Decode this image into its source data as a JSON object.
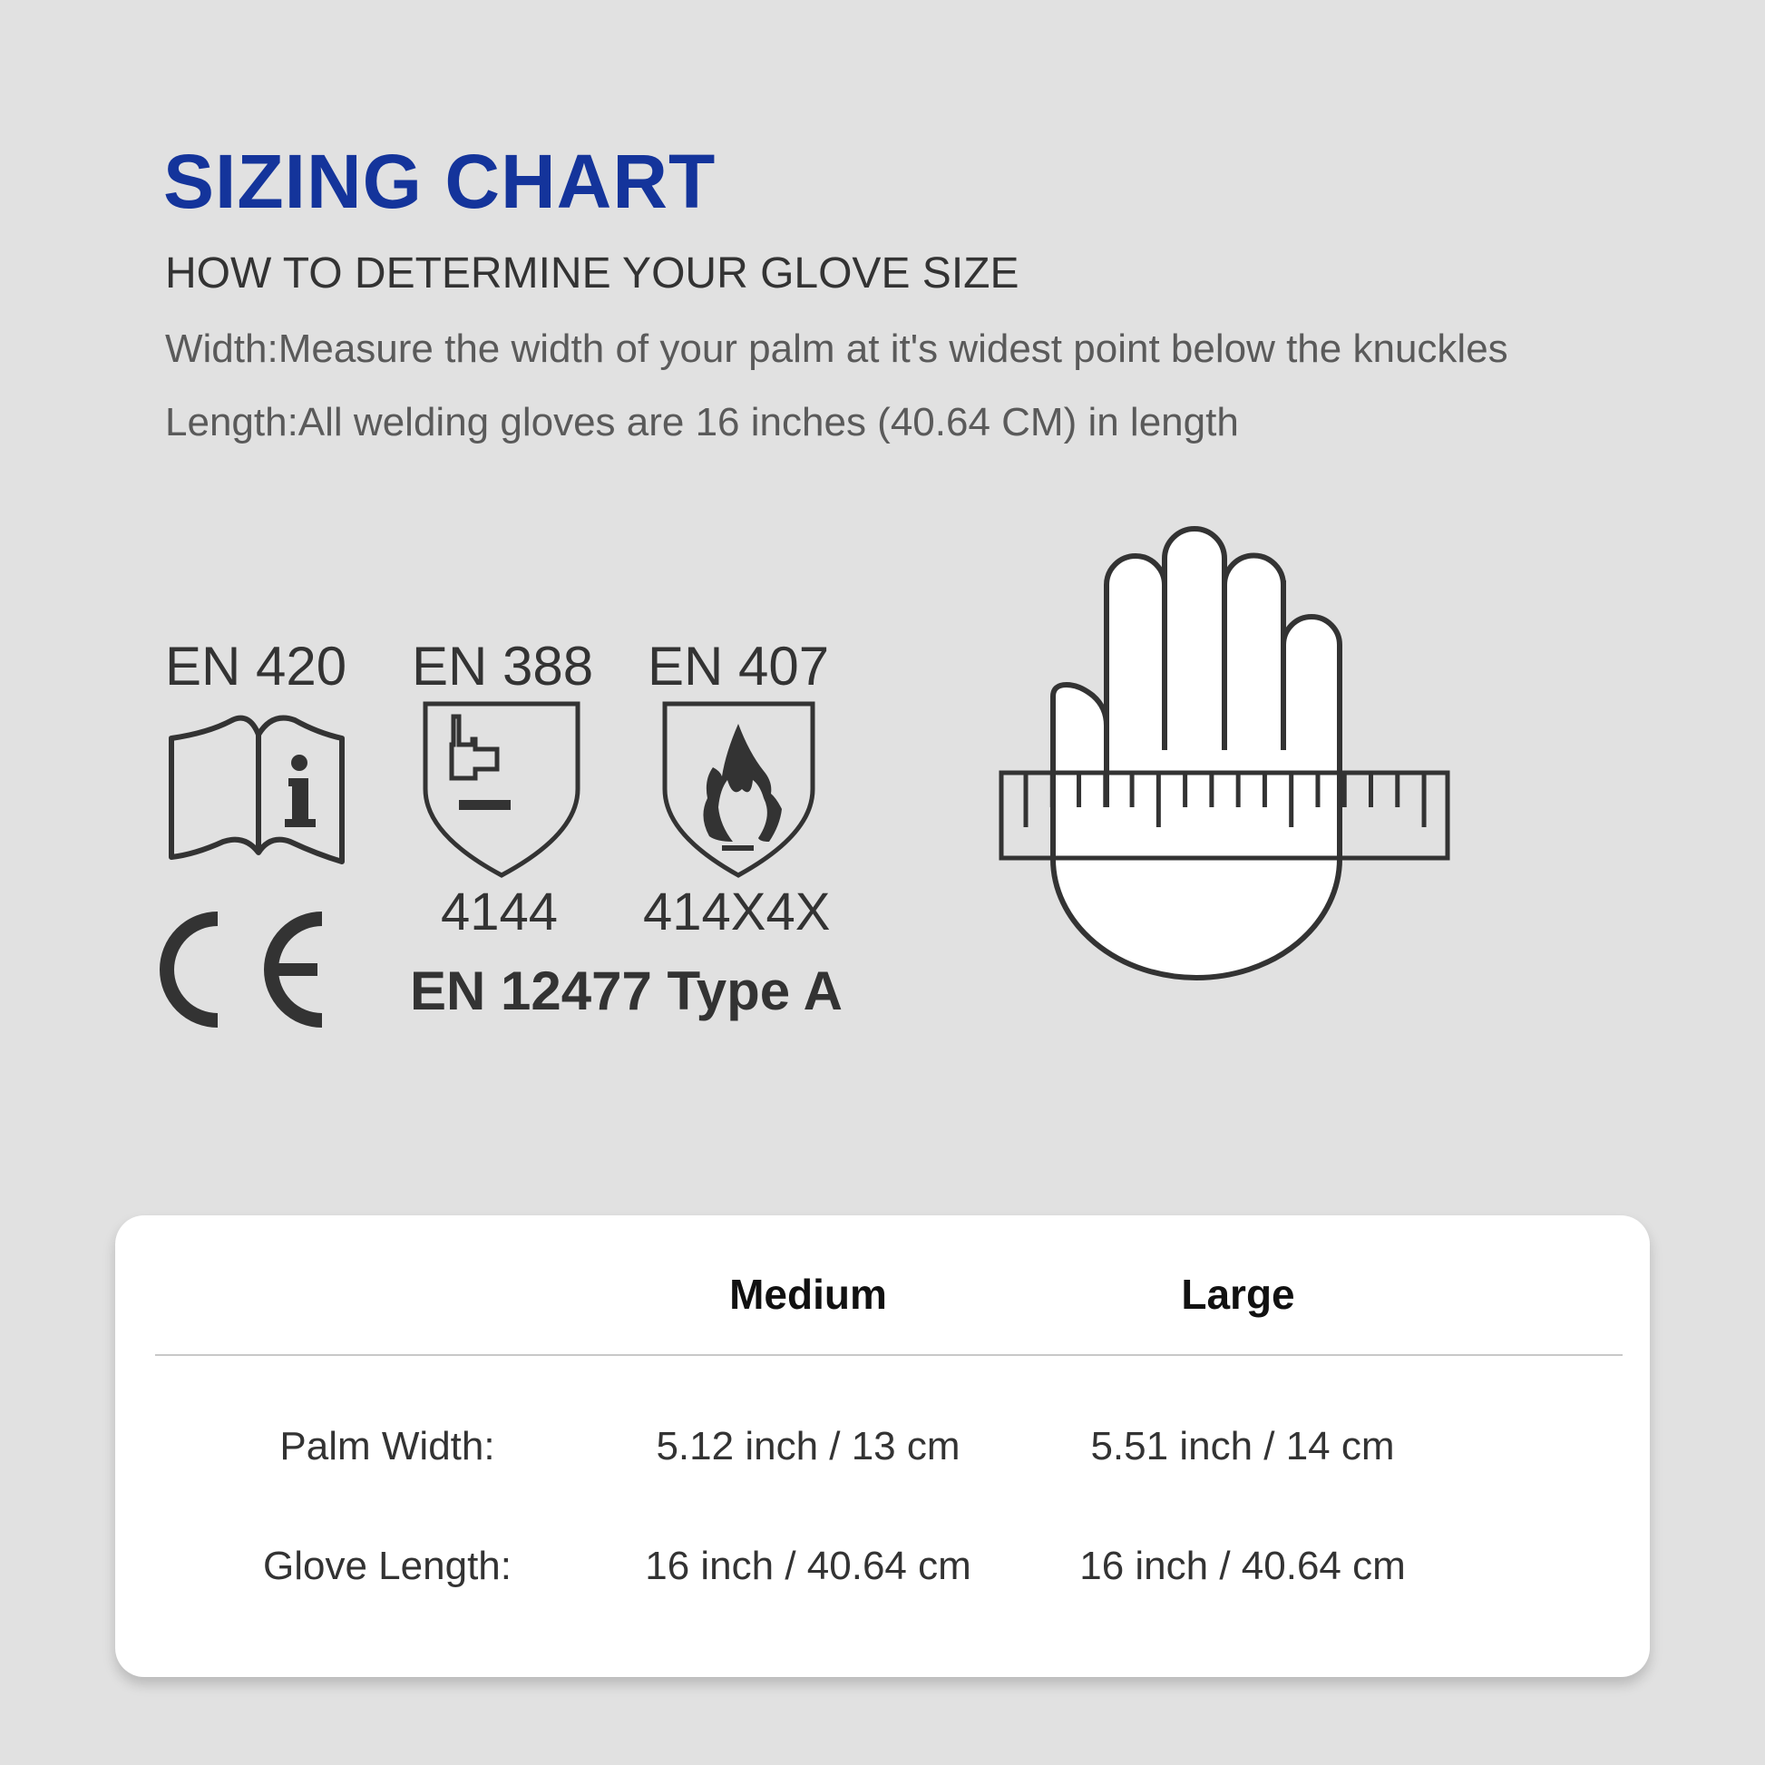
{
  "header": {
    "title": "SIZING CHART",
    "subtitle": "HOW TO DETERMINE YOUR GLOVE SIZE",
    "width_instruction": "Width:Measure the width of your palm at it's widest point below the knuckles",
    "length_instruction": "Length:All welding gloves are 16 inches (40.64 CM) in length",
    "title_color": "#14349b"
  },
  "certifications": [
    {
      "label": "EN 420",
      "icon": "book-info-icon"
    },
    {
      "label": "EN 388",
      "icon": "mechanical-hazard-shield-icon",
      "code": "4144"
    },
    {
      "label": "EN 407",
      "icon": "flame-shield-icon",
      "code": "414X4X"
    }
  ],
  "ce_mark": "CE",
  "standard": "EN 12477 Type A",
  "illustration": {
    "icon": "hand-with-ruler-icon"
  },
  "table": {
    "columns": [
      "",
      "Medium",
      "Large"
    ],
    "rows": [
      {
        "label": "Palm Width:",
        "medium": "5.12 inch / 13 cm",
        "large": "5.51 inch / 14 cm"
      },
      {
        "label": "Glove Length:",
        "medium": "16 inch / 40.64 cm",
        "large": "16 inch / 40.64 cm"
      }
    ]
  }
}
